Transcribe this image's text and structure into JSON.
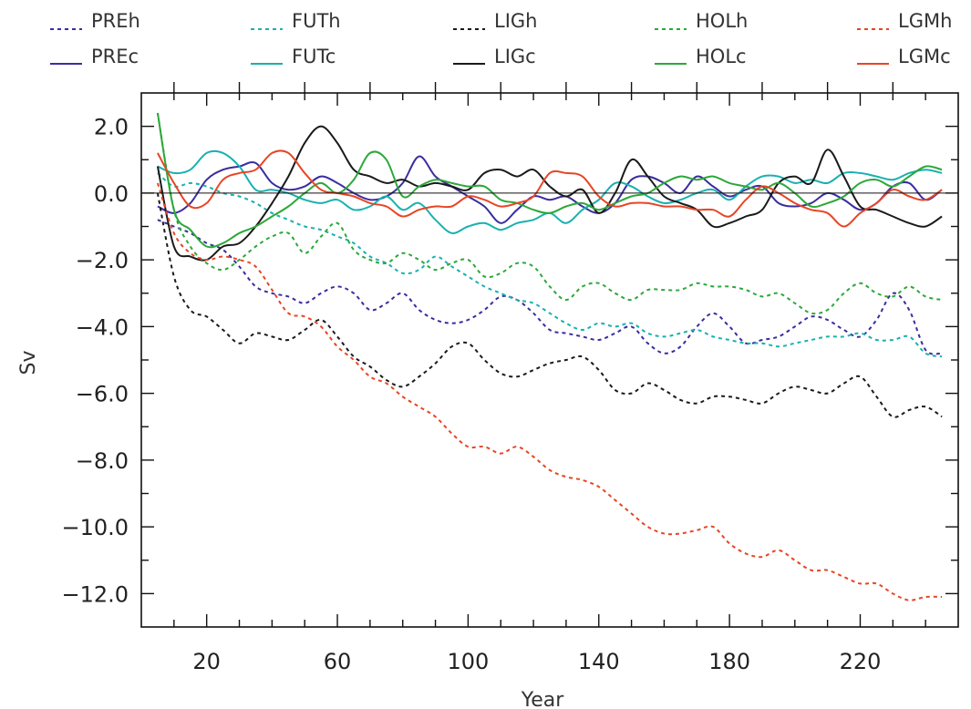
{
  "chart_data": {
    "type": "line",
    "title": "",
    "xlabel": "Year",
    "ylabel": "Sv",
    "xlim": [
      0,
      250
    ],
    "ylim": [
      -13,
      3
    ],
    "xticks": [
      20,
      60,
      100,
      140,
      180,
      220
    ],
    "xtick_labels": [
      "20",
      "60",
      "100",
      "140",
      "180",
      "220"
    ],
    "yticks": [
      2,
      0,
      -2,
      -4,
      -6,
      -8,
      -10,
      -12
    ],
    "ytick_labels": [
      "2.0",
      "0.0",
      "−2.0",
      "−4.0",
      "−6.0",
      "−8.0",
      "−10.0",
      "−12.0"
    ],
    "zero_line": true,
    "grid": false,
    "legend": "top, outside plot, 5 columns",
    "series": [
      {
        "name": "PREh",
        "color": "#3a2d9e",
        "dash": true,
        "x": [
          5,
          10,
          15,
          20,
          25,
          30,
          35,
          40,
          45,
          50,
          55,
          60,
          65,
          70,
          75,
          80,
          85,
          90,
          95,
          100,
          105,
          110,
          115,
          120,
          125,
          130,
          135,
          140,
          145,
          150,
          155,
          160,
          165,
          170,
          175,
          180,
          185,
          190,
          195,
          200,
          205,
          210,
          215,
          220,
          225,
          230,
          235,
          240,
          245
        ],
        "y": [
          -0.8,
          -1.0,
          -1.2,
          -1.5,
          -1.7,
          -2.2,
          -2.8,
          -3.0,
          -3.1,
          -3.3,
          -3.0,
          -2.8,
          -3.0,
          -3.5,
          -3.3,
          -3.0,
          -3.5,
          -3.8,
          -3.9,
          -3.8,
          -3.5,
          -3.1,
          -3.2,
          -3.6,
          -4.1,
          -4.2,
          -4.3,
          -4.4,
          -4.2,
          -4.0,
          -4.5,
          -4.8,
          -4.6,
          -4.0,
          -3.6,
          -4.0,
          -4.5,
          -4.4,
          -4.3,
          -4.0,
          -3.7,
          -3.8,
          -4.1,
          -4.3,
          -3.8,
          -3.0,
          -3.5,
          -4.7,
          -4.8
        ]
      },
      {
        "name": "PREc",
        "color": "#3a2d9e",
        "dash": false,
        "x": [
          5,
          10,
          15,
          20,
          25,
          30,
          35,
          40,
          45,
          50,
          55,
          60,
          65,
          70,
          75,
          80,
          85,
          90,
          95,
          100,
          105,
          110,
          115,
          120,
          125,
          130,
          135,
          140,
          145,
          150,
          155,
          160,
          165,
          170,
          175,
          180,
          185,
          190,
          195,
          200,
          205,
          210,
          215,
          220,
          225,
          230,
          235,
          240,
          245
        ],
        "y": [
          -0.4,
          -0.6,
          -0.3,
          0.4,
          0.7,
          0.8,
          0.9,
          0.3,
          0.1,
          0.2,
          0.5,
          0.3,
          0.0,
          -0.2,
          -0.1,
          0.3,
          1.1,
          0.5,
          0.2,
          -0.1,
          -0.4,
          -0.9,
          -0.5,
          -0.1,
          -0.2,
          -0.1,
          -0.4,
          -0.6,
          -0.3,
          0.4,
          0.5,
          0.3,
          0.0,
          0.5,
          0.2,
          -0.1,
          0.1,
          0.2,
          -0.3,
          -0.4,
          -0.3,
          0.0,
          -0.2,
          -0.5,
          -0.3,
          0.2,
          0.3,
          -0.2,
          0.1
        ]
      },
      {
        "name": "FUTh",
        "color": "#1ab0b0",
        "dash": true,
        "x": [
          5,
          10,
          15,
          20,
          25,
          30,
          35,
          40,
          45,
          50,
          55,
          60,
          65,
          70,
          75,
          80,
          85,
          90,
          95,
          100,
          105,
          110,
          115,
          120,
          125,
          130,
          135,
          140,
          145,
          150,
          155,
          160,
          165,
          170,
          175,
          180,
          185,
          190,
          195,
          200,
          205,
          210,
          215,
          220,
          225,
          230,
          235,
          240,
          245
        ],
        "y": [
          0.6,
          0.2,
          0.3,
          0.2,
          0.0,
          -0.1,
          -0.3,
          -0.6,
          -0.8,
          -1.0,
          -1.1,
          -1.3,
          -1.5,
          -1.9,
          -2.1,
          -2.4,
          -2.3,
          -1.9,
          -2.2,
          -2.5,
          -2.8,
          -3.0,
          -3.2,
          -3.3,
          -3.6,
          -3.9,
          -4.1,
          -3.9,
          -4.0,
          -3.9,
          -4.2,
          -4.3,
          -4.2,
          -4.1,
          -4.3,
          -4.4,
          -4.5,
          -4.5,
          -4.6,
          -4.5,
          -4.4,
          -4.3,
          -4.3,
          -4.2,
          -4.4,
          -4.4,
          -4.3,
          -4.8,
          -4.9
        ]
      },
      {
        "name": "FUTc",
        "color": "#1ab0b0",
        "dash": false,
        "x": [
          5,
          10,
          15,
          20,
          25,
          30,
          35,
          40,
          45,
          50,
          55,
          60,
          65,
          70,
          75,
          80,
          85,
          90,
          95,
          100,
          105,
          110,
          115,
          120,
          125,
          130,
          135,
          140,
          145,
          150,
          155,
          160,
          165,
          170,
          175,
          180,
          185,
          190,
          195,
          200,
          205,
          210,
          215,
          220,
          225,
          230,
          235,
          240,
          245
        ],
        "y": [
          0.8,
          0.6,
          0.7,
          1.2,
          1.2,
          0.8,
          0.1,
          0.1,
          0.0,
          -0.2,
          -0.3,
          -0.2,
          -0.5,
          -0.4,
          -0.1,
          -0.5,
          -0.3,
          -0.8,
          -1.2,
          -1.0,
          -0.9,
          -1.1,
          -0.9,
          -0.8,
          -0.6,
          -0.9,
          -0.5,
          -0.2,
          0.3,
          0.2,
          -0.1,
          -0.3,
          -0.2,
          0.0,
          0.1,
          -0.2,
          0.2,
          0.5,
          0.5,
          0.3,
          0.4,
          0.3,
          0.6,
          0.6,
          0.5,
          0.4,
          0.6,
          0.7,
          0.6
        ]
      },
      {
        "name": "LIGh",
        "color": "#1a1a1a",
        "dash": true,
        "x": [
          5,
          10,
          15,
          20,
          25,
          30,
          35,
          40,
          45,
          50,
          55,
          60,
          65,
          70,
          75,
          80,
          85,
          90,
          95,
          100,
          105,
          110,
          115,
          120,
          125,
          130,
          135,
          140,
          145,
          150,
          155,
          160,
          165,
          170,
          175,
          180,
          185,
          190,
          195,
          200,
          205,
          210,
          215,
          220,
          225,
          230,
          235,
          240,
          245
        ],
        "y": [
          0.0,
          -2.5,
          -3.5,
          -3.7,
          -4.1,
          -4.5,
          -4.2,
          -4.3,
          -4.4,
          -4.1,
          -3.8,
          -4.3,
          -4.9,
          -5.2,
          -5.6,
          -5.8,
          -5.5,
          -5.1,
          -4.6,
          -4.5,
          -5.0,
          -5.4,
          -5.5,
          -5.3,
          -5.1,
          -5.0,
          -4.9,
          -5.3,
          -5.9,
          -6.0,
          -5.7,
          -5.9,
          -6.2,
          -6.3,
          -6.1,
          -6.1,
          -6.2,
          -6.3,
          -6.0,
          -5.8,
          -5.9,
          -6.0,
          -5.7,
          -5.5,
          -6.1,
          -6.7,
          -6.5,
          -6.4,
          -6.7
        ]
      },
      {
        "name": "LIGc",
        "color": "#1a1a1a",
        "dash": false,
        "x": [
          5,
          10,
          15,
          20,
          25,
          30,
          35,
          40,
          45,
          50,
          55,
          60,
          65,
          70,
          75,
          80,
          85,
          90,
          95,
          100,
          105,
          110,
          115,
          120,
          125,
          130,
          135,
          140,
          145,
          150,
          155,
          160,
          165,
          170,
          175,
          180,
          185,
          190,
          195,
          200,
          205,
          210,
          215,
          220,
          225,
          230,
          235,
          240,
          245
        ],
        "y": [
          0.8,
          -1.6,
          -1.9,
          -2.0,
          -1.6,
          -1.5,
          -1.0,
          -0.3,
          0.5,
          1.5,
          2.0,
          1.5,
          0.7,
          0.5,
          0.3,
          0.4,
          0.2,
          0.3,
          0.2,
          0.1,
          0.6,
          0.7,
          0.5,
          0.7,
          0.2,
          -0.1,
          0.1,
          -0.6,
          0.0,
          1.0,
          0.5,
          -0.1,
          -0.3,
          -0.5,
          -1.0,
          -0.9,
          -0.7,
          -0.5,
          0.3,
          0.5,
          0.3,
          1.3,
          0.5,
          -0.4,
          -0.5,
          -0.7,
          -0.9,
          -1.0,
          -0.7
        ]
      },
      {
        "name": "HOLh",
        "color": "#2ca83a",
        "dash": true,
        "x": [
          5,
          10,
          15,
          20,
          25,
          30,
          35,
          40,
          45,
          50,
          55,
          60,
          65,
          70,
          75,
          80,
          85,
          90,
          95,
          100,
          105,
          110,
          115,
          120,
          125,
          130,
          135,
          140,
          145,
          150,
          155,
          160,
          165,
          170,
          175,
          180,
          185,
          190,
          195,
          200,
          205,
          210,
          215,
          220,
          225,
          230,
          235,
          240,
          245
        ],
        "y": [
          2.4,
          -0.5,
          -1.6,
          -2.1,
          -2.3,
          -2.0,
          -1.6,
          -1.3,
          -1.2,
          -1.8,
          -1.3,
          -0.9,
          -1.7,
          -2.0,
          -2.1,
          -1.8,
          -2.0,
          -2.3,
          -2.1,
          -2.0,
          -2.5,
          -2.4,
          -2.1,
          -2.2,
          -2.8,
          -3.2,
          -2.8,
          -2.7,
          -3.0,
          -3.2,
          -2.9,
          -2.9,
          -2.9,
          -2.7,
          -2.8,
          -2.8,
          -2.9,
          -3.1,
          -3.0,
          -3.3,
          -3.6,
          -3.5,
          -3.0,
          -2.7,
          -3.0,
          -3.1,
          -2.8,
          -3.1,
          -3.2
        ]
      },
      {
        "name": "HOLc",
        "color": "#2ca83a",
        "dash": false,
        "x": [
          5,
          10,
          15,
          20,
          25,
          30,
          35,
          40,
          45,
          50,
          55,
          60,
          65,
          70,
          75,
          80,
          85,
          90,
          95,
          100,
          105,
          110,
          115,
          120,
          125,
          130,
          135,
          140,
          145,
          150,
          155,
          160,
          165,
          170,
          175,
          180,
          185,
          190,
          195,
          200,
          205,
          210,
          215,
          220,
          225,
          230,
          235,
          240,
          245
        ],
        "y": [
          2.4,
          -0.5,
          -1.1,
          -1.6,
          -1.5,
          -1.2,
          -1.0,
          -0.7,
          -0.4,
          0.0,
          0.3,
          0.0,
          0.4,
          1.2,
          1.0,
          -0.1,
          0.2,
          0.4,
          0.3,
          0.2,
          0.2,
          -0.2,
          -0.3,
          -0.5,
          -0.6,
          -0.4,
          -0.3,
          -0.5,
          -0.3,
          -0.1,
          0.0,
          0.3,
          0.5,
          0.4,
          0.5,
          0.3,
          0.2,
          0.1,
          0.3,
          0.0,
          -0.4,
          -0.3,
          -0.1,
          0.3,
          0.4,
          0.2,
          0.5,
          0.8,
          0.7
        ]
      },
      {
        "name": "LGMh",
        "color": "#e84524",
        "dash": true,
        "x": [
          5,
          10,
          15,
          20,
          25,
          30,
          35,
          40,
          45,
          50,
          55,
          60,
          65,
          70,
          75,
          80,
          85,
          90,
          95,
          100,
          105,
          110,
          115,
          120,
          125,
          130,
          135,
          140,
          145,
          150,
          155,
          160,
          165,
          170,
          175,
          180,
          185,
          190,
          195,
          200,
          205,
          210,
          215,
          220,
          225,
          230,
          235,
          240,
          245
        ],
        "y": [
          0.3,
          -1.2,
          -1.8,
          -2.0,
          -1.9,
          -2.0,
          -2.2,
          -2.9,
          -3.6,
          -3.7,
          -4.0,
          -4.6,
          -5.0,
          -5.5,
          -5.7,
          -6.1,
          -6.4,
          -6.7,
          -7.2,
          -7.6,
          -7.6,
          -7.8,
          -7.6,
          -7.9,
          -8.3,
          -8.5,
          -8.6,
          -8.8,
          -9.2,
          -9.6,
          -10.0,
          -10.2,
          -10.2,
          -10.1,
          -10.0,
          -10.5,
          -10.8,
          -10.9,
          -10.7,
          -11.0,
          -11.3,
          -11.3,
          -11.5,
          -11.7,
          -11.7,
          -12.0,
          -12.2,
          -12.1,
          -12.1
        ]
      },
      {
        "name": "LGMc",
        "color": "#e84524",
        "dash": false,
        "x": [
          5,
          10,
          15,
          20,
          25,
          30,
          35,
          40,
          45,
          50,
          55,
          60,
          65,
          70,
          75,
          80,
          85,
          90,
          95,
          100,
          105,
          110,
          115,
          120,
          125,
          130,
          135,
          140,
          145,
          150,
          155,
          160,
          165,
          170,
          175,
          180,
          185,
          190,
          195,
          200,
          205,
          210,
          215,
          220,
          225,
          230,
          235,
          240,
          245
        ],
        "y": [
          1.2,
          0.3,
          -0.4,
          -0.3,
          0.4,
          0.6,
          0.7,
          1.2,
          1.2,
          0.6,
          0.1,
          0.0,
          -0.1,
          -0.3,
          -0.4,
          -0.7,
          -0.5,
          -0.4,
          -0.4,
          -0.1,
          -0.2,
          -0.4,
          -0.3,
          -0.1,
          0.6,
          0.6,
          0.5,
          -0.1,
          -0.4,
          -0.3,
          -0.3,
          -0.4,
          -0.4,
          -0.5,
          -0.5,
          -0.7,
          -0.2,
          0.2,
          0.0,
          -0.3,
          -0.5,
          -0.6,
          -1.0,
          -0.6,
          -0.3,
          0.1,
          -0.1,
          -0.2,
          0.1
        ]
      }
    ]
  }
}
